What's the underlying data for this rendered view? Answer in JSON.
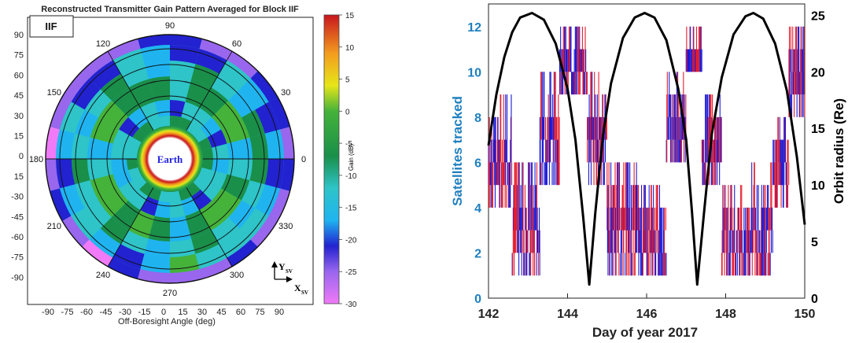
{
  "chart_data": [
    {
      "type": "heatmap",
      "title": "Reconstructed Transmitter Gain Pattern Averaged for Block IIF",
      "legend_box_label": "IIF",
      "xlabel": "Off-Boresight Angle (deg)",
      "center_label": "Earth",
      "x_ticks": [
        "-90",
        "-75",
        "-60",
        "-45",
        "-30",
        "-15",
        "0",
        "15",
        "30",
        "45",
        "60",
        "75",
        "90"
      ],
      "y_ticks": [
        "90",
        "75",
        "60",
        "45",
        "30",
        "15",
        "0",
        "15",
        "-30",
        "-45",
        "-60",
        "-75",
        "-90"
      ],
      "azimuth_labels": [
        "0",
        "30",
        "60",
        "90",
        "120",
        "150",
        "180",
        "210",
        "240",
        "270",
        "300",
        "330"
      ],
      "colorbar": {
        "label": "Gain (dB)",
        "ticks": [
          "15",
          "10",
          "5",
          "0",
          "-5",
          "-10",
          "-15",
          "-20",
          "-25",
          "-30"
        ],
        "range": [
          -30,
          15
        ],
        "stops": [
          {
            "v": 15,
            "c": "#c8161d"
          },
          {
            "v": 9,
            "c": "#f39c1f"
          },
          {
            "v": 4,
            "c": "#e6e619"
          },
          {
            "v": 0,
            "c": "#45b23a"
          },
          {
            "v": -7,
            "c": "#1a8f4a"
          },
          {
            "v": -12,
            "c": "#2ec4c8"
          },
          {
            "v": -17,
            "c": "#1fb4f0"
          },
          {
            "v": -21,
            "c": "#2222d0"
          },
          {
            "v": -25,
            "c": "#9966ee"
          },
          {
            "v": -30,
            "c": "#f07af7"
          }
        ]
      },
      "axis_y_label": "Y",
      "axis_y_sub": "SV",
      "axis_x_label": "X",
      "axis_x_sub": "SV"
    },
    {
      "type": "line",
      "xlabel": "Day of year 2017",
      "ylabel_left": "Satellites tracked",
      "ylabel_right": "Orbit radius (Re)",
      "x_range": [
        142,
        150
      ],
      "y_left_range": [
        0,
        13
      ],
      "y_right_range": [
        0,
        26
      ],
      "x_ticks": [
        "142",
        "144",
        "146",
        "148",
        "150"
      ],
      "y_left_ticks": [
        "0",
        "2",
        "4",
        "6",
        "8",
        "10",
        "12"
      ],
      "y_right_ticks": [
        "0",
        "5",
        "10",
        "15",
        "20",
        "25"
      ],
      "series": [
        {
          "kind": "orbit_radius",
          "color": "#000000",
          "points": [
            [
              142.0,
              13.5
            ],
            [
              142.2,
              18.0
            ],
            [
              142.4,
              21.3
            ],
            [
              142.6,
              23.5
            ],
            [
              142.8,
              24.8
            ],
            [
              143.1,
              25.2
            ],
            [
              143.4,
              24.6
            ],
            [
              143.7,
              22.5
            ],
            [
              144.0,
              18.5
            ],
            [
              144.2,
              14.0
            ],
            [
              144.4,
              7.0
            ],
            [
              144.55,
              1.2
            ],
            [
              144.7,
              7.5
            ],
            [
              144.9,
              14.5
            ],
            [
              145.1,
              19.0
            ],
            [
              145.4,
              23.0
            ],
            [
              145.7,
              24.8
            ],
            [
              145.95,
              25.2
            ],
            [
              146.2,
              24.8
            ],
            [
              146.5,
              22.8
            ],
            [
              146.8,
              18.5
            ],
            [
              147.0,
              14.0
            ],
            [
              147.15,
              7.5
            ],
            [
              147.28,
              1.2
            ],
            [
              147.45,
              7.5
            ],
            [
              147.65,
              14.5
            ],
            [
              147.9,
              19.5
            ],
            [
              148.2,
              23.3
            ],
            [
              148.5,
              24.9
            ],
            [
              148.7,
              25.2
            ],
            [
              148.95,
              24.7
            ],
            [
              149.25,
              22.5
            ],
            [
              149.55,
              18.3
            ],
            [
              149.8,
              12.5
            ],
            [
              150.0,
              6.5
            ]
          ]
        },
        {
          "kind": "satellites_tracked",
          "color": "#1a1ad6",
          "alt_color": "#e61c2c",
          "segments": [
            {
              "x0": 142.0,
              "x1": 142.6,
              "ymin": 4,
              "ymax": 9
            },
            {
              "x0": 142.6,
              "x1": 143.3,
              "ymin": 1,
              "ymax": 6
            },
            {
              "x0": 143.3,
              "x1": 143.8,
              "ymin": 5,
              "ymax": 10
            },
            {
              "x0": 143.8,
              "x1": 144.5,
              "ymin": 9,
              "ymax": 12
            },
            {
              "x0": 144.5,
              "x1": 145.0,
              "ymin": 5,
              "ymax": 10
            },
            {
              "x0": 145.0,
              "x1": 145.8,
              "ymin": 1,
              "ymax": 6
            },
            {
              "x0": 145.8,
              "x1": 146.5,
              "ymin": 1,
              "ymax": 5
            },
            {
              "x0": 146.5,
              "x1": 147.0,
              "ymin": 6,
              "ymax": 10
            },
            {
              "x0": 147.0,
              "x1": 147.4,
              "ymin": 10,
              "ymax": 12
            },
            {
              "x0": 147.4,
              "x1": 147.9,
              "ymin": 5,
              "ymax": 9
            },
            {
              "x0": 147.9,
              "x1": 148.6,
              "ymin": 1,
              "ymax": 5
            },
            {
              "x0": 148.6,
              "x1": 149.2,
              "ymin": 1,
              "ymax": 6
            },
            {
              "x0": 149.2,
              "x1": 149.6,
              "ymin": 4,
              "ymax": 8
            },
            {
              "x0": 149.6,
              "x1": 150.0,
              "ymin": 8,
              "ymax": 12
            }
          ]
        }
      ],
      "colors": {
        "left_axis": "#1f7fbf",
        "right_axis": "#000000"
      }
    }
  ]
}
